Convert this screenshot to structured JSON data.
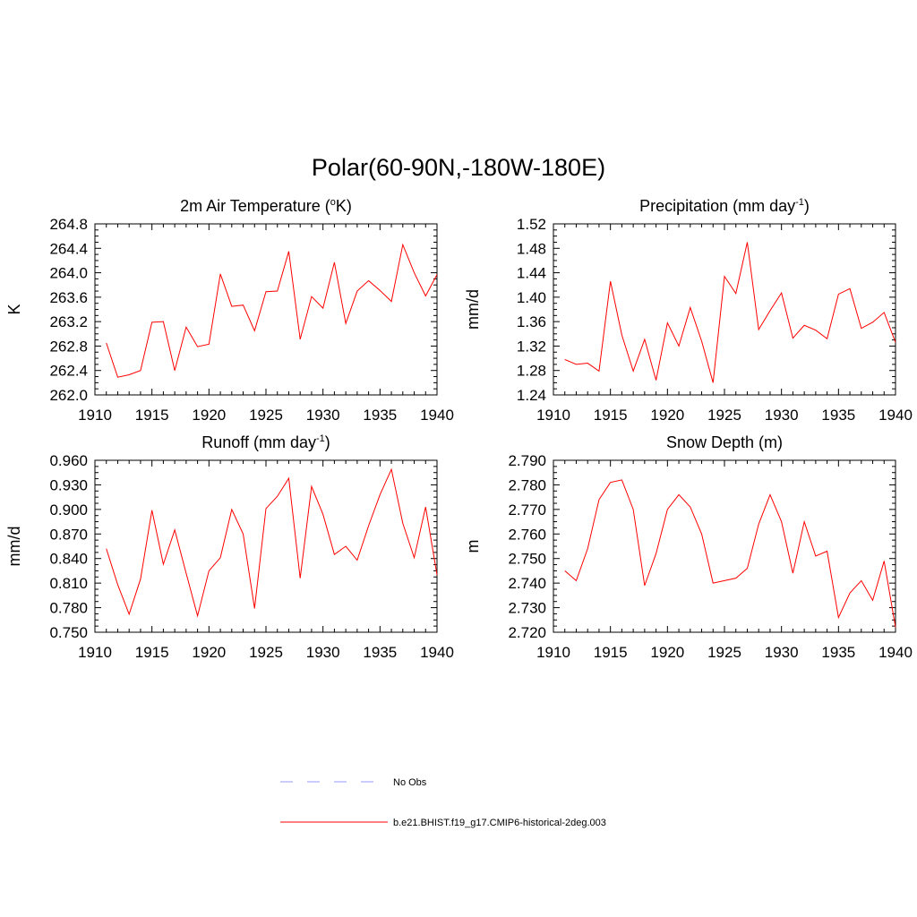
{
  "page_title": "Polar(60-90N,-180W-180E)",
  "legend": [
    {
      "label": "No Obs",
      "color": "#9999ff",
      "dash": true
    },
    {
      "label": "b.e21.BHIST.f19_g17.CMIP6-historical-2deg.003",
      "color": "#ff0000",
      "dash": false
    }
  ],
  "chart_data": [
    {
      "type": "line",
      "title_main": "2m Air Temperature (",
      "title_sup": "o",
      "title_end": "K)",
      "ylabel": "K",
      "xlim": [
        1910,
        1940
      ],
      "ylim": [
        262.0,
        264.8
      ],
      "xticks": [
        1910,
        1915,
        1920,
        1925,
        1930,
        1935,
        1940
      ],
      "yticks": [
        "262.0",
        "262.4",
        "262.8",
        "263.2",
        "263.6",
        "264.0",
        "264.4",
        "264.8"
      ],
      "series": [
        {
          "color": "#ff0000",
          "x": [
            1911,
            1912,
            1913,
            1914,
            1915,
            1916,
            1917,
            1918,
            1919,
            1920,
            1921,
            1922,
            1923,
            1924,
            1925,
            1926,
            1927,
            1928,
            1929,
            1930,
            1931,
            1932,
            1933,
            1934,
            1935,
            1936,
            1937,
            1938,
            1939,
            1940
          ],
          "y": [
            262.85,
            262.29,
            262.33,
            262.4,
            263.19,
            263.2,
            262.4,
            263.11,
            262.79,
            262.83,
            263.98,
            263.45,
            263.47,
            263.05,
            263.69,
            263.7,
            264.35,
            262.91,
            263.61,
            263.42,
            264.17,
            263.17,
            263.7,
            263.87,
            263.71,
            263.53,
            264.46,
            264.0,
            263.62,
            263.97
          ]
        }
      ]
    },
    {
      "type": "line",
      "title_main": "Precipitation (mm day",
      "title_sup": "-1",
      "title_end": ")",
      "ylabel": "mm/d",
      "xlim": [
        1910,
        1940
      ],
      "ylim": [
        1.24,
        1.52
      ],
      "xticks": [
        1910,
        1915,
        1920,
        1925,
        1930,
        1935,
        1940
      ],
      "yticks": [
        "1.24",
        "1.28",
        "1.32",
        "1.36",
        "1.40",
        "1.44",
        "1.48",
        "1.52"
      ],
      "series": [
        {
          "color": "#ff0000",
          "x": [
            1911,
            1912,
            1913,
            1914,
            1915,
            1916,
            1917,
            1918,
            1919,
            1920,
            1921,
            1922,
            1923,
            1924,
            1925,
            1926,
            1927,
            1928,
            1929,
            1930,
            1931,
            1932,
            1933,
            1934,
            1935,
            1936,
            1937,
            1938,
            1939,
            1940
          ],
          "y": [
            1.298,
            1.29,
            1.292,
            1.279,
            1.426,
            1.338,
            1.279,
            1.331,
            1.264,
            1.358,
            1.32,
            1.383,
            1.328,
            1.26,
            1.434,
            1.406,
            1.49,
            1.347,
            1.378,
            1.407,
            1.333,
            1.354,
            1.346,
            1.332,
            1.405,
            1.414,
            1.349,
            1.359,
            1.375,
            1.326
          ]
        }
      ]
    },
    {
      "type": "line",
      "title_main": "Runoff (mm day",
      "title_sup": "-1",
      "title_end": ")",
      "ylabel": "mm/d",
      "xlim": [
        1910,
        1940
      ],
      "ylim": [
        0.75,
        0.96
      ],
      "xticks": [
        1910,
        1915,
        1920,
        1925,
        1930,
        1935,
        1940
      ],
      "yticks": [
        "0.750",
        "0.780",
        "0.810",
        "0.840",
        "0.870",
        "0.900",
        "0.930",
        "0.960"
      ],
      "series": [
        {
          "color": "#ff0000",
          "x": [
            1911,
            1912,
            1913,
            1914,
            1915,
            1916,
            1917,
            1918,
            1919,
            1920,
            1921,
            1922,
            1923,
            1924,
            1925,
            1926,
            1927,
            1928,
            1929,
            1930,
            1931,
            1932,
            1933,
            1934,
            1935,
            1936,
            1937,
            1938,
            1939,
            1940
          ],
          "y": [
            0.852,
            0.808,
            0.772,
            0.815,
            0.899,
            0.833,
            0.875,
            0.822,
            0.77,
            0.825,
            0.841,
            0.9,
            0.87,
            0.779,
            0.901,
            0.916,
            0.938,
            0.816,
            0.928,
            0.894,
            0.845,
            0.855,
            0.838,
            0.88,
            0.918,
            0.949,
            0.883,
            0.841,
            0.903,
            0.82
          ]
        }
      ]
    },
    {
      "type": "line",
      "title_main": "Snow Depth (m)",
      "title_sup": "",
      "title_end": "",
      "ylabel": "m",
      "xlim": [
        1910,
        1940
      ],
      "ylim": [
        2.72,
        2.79
      ],
      "xticks": [
        1910,
        1915,
        1920,
        1925,
        1930,
        1935,
        1940
      ],
      "yticks": [
        "2.720",
        "2.730",
        "2.740",
        "2.750",
        "2.760",
        "2.770",
        "2.780",
        "2.790"
      ],
      "series": [
        {
          "color": "#ff0000",
          "x": [
            1911,
            1912,
            1913,
            1914,
            1915,
            1916,
            1917,
            1918,
            1919,
            1920,
            1921,
            1922,
            1923,
            1924,
            1925,
            1926,
            1927,
            1928,
            1929,
            1930,
            1931,
            1932,
            1933,
            1934,
            1935,
            1936,
            1937,
            1938,
            1939,
            1940
          ],
          "y": [
            2.745,
            2.741,
            2.754,
            2.774,
            2.781,
            2.782,
            2.77,
            2.739,
            2.752,
            2.77,
            2.776,
            2.771,
            2.76,
            2.74,
            2.741,
            2.742,
            2.746,
            2.764,
            2.776,
            2.765,
            2.744,
            2.765,
            2.751,
            2.753,
            2.726,
            2.736,
            2.741,
            2.733,
            2.749,
            2.722
          ]
        }
      ]
    }
  ]
}
